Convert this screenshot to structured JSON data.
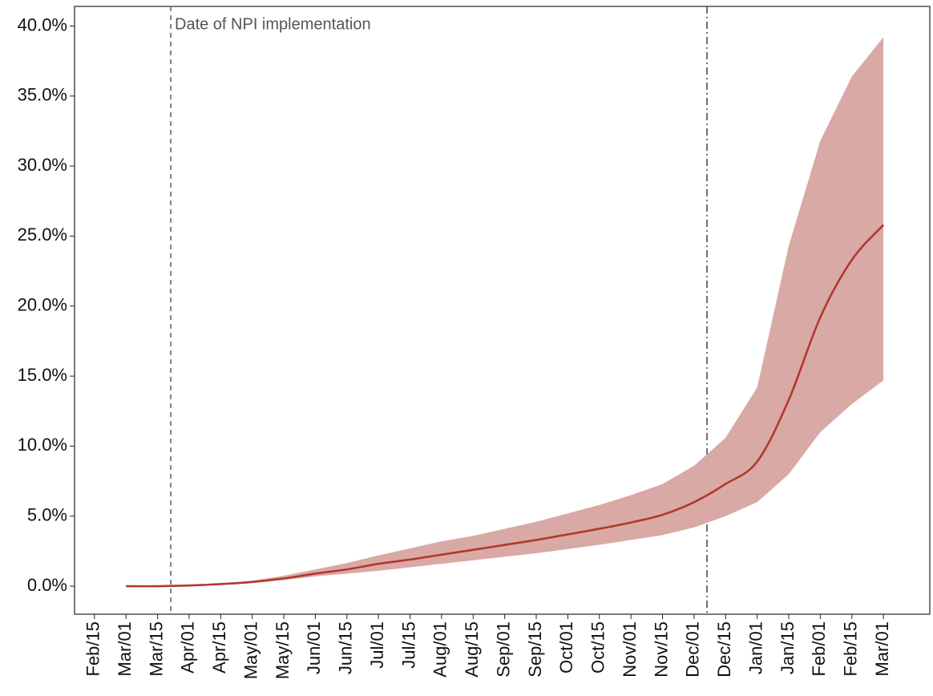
{
  "chart_data": {
    "type": "line",
    "categories": [
      "Feb/15",
      "Mar/01",
      "Mar/15",
      "Apr/01",
      "Apr/15",
      "May/01",
      "May/15",
      "Jun/01",
      "Jun/15",
      "Jul/01",
      "Jul/15",
      "Aug/01",
      "Aug/15",
      "Sep/01",
      "Sep/15",
      "Oct/01",
      "Oct/15",
      "Nov/01",
      "Nov/15",
      "Dec/01",
      "Dec/15",
      "Jan/01",
      "Jan/15",
      "Feb/01",
      "Feb/15",
      "Mar/01"
    ],
    "values": [
      null,
      0,
      0,
      0.05,
      0.15,
      0.3,
      0.55,
      0.9,
      1.2,
      1.6,
      1.9,
      2.25,
      2.6,
      2.95,
      3.3,
      3.7,
      4.1,
      4.55,
      5.1,
      6.0,
      7.3,
      8.9,
      13.3,
      19.2,
      23.3,
      25.8
    ],
    "band_lower": [
      null,
      0,
      0,
      0.04,
      0.12,
      0.25,
      0.45,
      0.7,
      0.9,
      1.1,
      1.35,
      1.6,
      1.85,
      2.1,
      2.35,
      2.65,
      2.95,
      3.3,
      3.65,
      4.2,
      5.0,
      6.0,
      8.0,
      11.0,
      13.0,
      14.7
    ],
    "band_upper": [
      null,
      0,
      0,
      0.06,
      0.18,
      0.4,
      0.75,
      1.2,
      1.65,
      2.2,
      2.7,
      3.2,
      3.6,
      4.1,
      4.6,
      5.2,
      5.8,
      6.5,
      7.3,
      8.6,
      10.6,
      14.2,
      24.3,
      31.8,
      36.4,
      39.2
    ],
    "color": "#b2382c",
    "band_color": "#d9a9a6",
    "annotation": "Date of NPI implementation",
    "ylim": [
      -2.0,
      41.4
    ],
    "yticks": [
      {
        "value": 0,
        "label": "0.0%"
      },
      {
        "value": 5,
        "label": "5.0%"
      },
      {
        "value": 10,
        "label": "10.0%"
      },
      {
        "value": 15,
        "label": "15.0%"
      },
      {
        "value": 20,
        "label": "20.0%"
      },
      {
        "value": 25,
        "label": "25.0%"
      },
      {
        "value": 30,
        "label": "30.0%"
      },
      {
        "value": 35,
        "label": "35.0%"
      },
      {
        "value": 40,
        "label": "40.0%"
      }
    ],
    "grid": false
  }
}
